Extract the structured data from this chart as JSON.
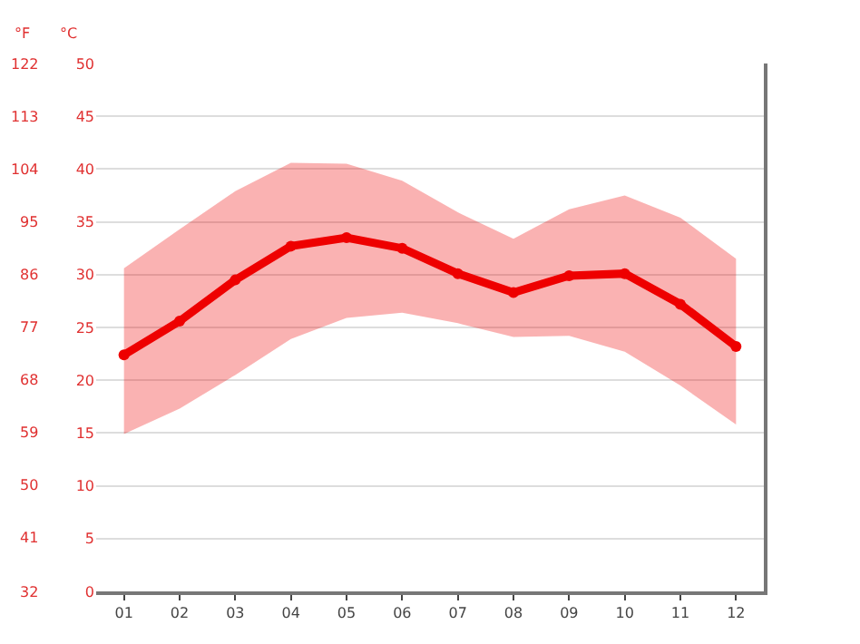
{
  "chart_data": {
    "type": "line",
    "x": [
      1,
      2,
      3,
      4,
      5,
      6,
      7,
      8,
      9,
      10,
      11,
      12
    ],
    "series": [
      {
        "color": "#ee0000",
        "values": [
          22.4,
          25.6,
          29.5,
          32.7,
          33.5,
          32.5,
          30.1,
          28.3,
          29.9,
          30.1,
          27.2,
          23.2
        ],
        "lower": [
          14.9,
          17.3,
          20.5,
          23.9,
          25.9,
          26.4,
          25.4,
          24.1,
          24.2,
          22.7,
          19.5,
          15.8
        ],
        "upper": [
          30.6,
          34.3,
          37.9,
          40.6,
          40.5,
          38.9,
          35.9,
          33.4,
          36.2,
          37.5,
          35.4,
          31.5
        ]
      }
    ],
    "xlim": [
      0.5,
      12.5
    ],
    "xticks": [
      {
        "value": 1,
        "label": "01"
      },
      {
        "value": 2,
        "label": "02"
      },
      {
        "value": 3,
        "label": "03"
      },
      {
        "value": 4,
        "label": "04"
      },
      {
        "value": 5,
        "label": "05"
      },
      {
        "value": 6,
        "label": "06"
      },
      {
        "value": 7,
        "label": "07"
      },
      {
        "value": 8,
        "label": "08"
      },
      {
        "value": 9,
        "label": "09"
      },
      {
        "value": 10,
        "label": "10"
      },
      {
        "value": 11,
        "label": "11"
      },
      {
        "value": 12,
        "label": "12"
      }
    ],
    "ylabel": "°C",
    "ylim": [
      0,
      50
    ],
    "yticks": [
      0,
      5,
      10,
      15,
      20,
      25,
      30,
      35,
      40,
      45,
      50
    ],
    "y2label": "°F",
    "y2lim": [
      32,
      122
    ],
    "y2ticks": [
      32,
      41,
      50,
      59,
      68,
      77,
      86,
      95,
      104,
      113,
      122
    ],
    "grid": "y",
    "marker": "circle",
    "line_style": "solid",
    "legend": false
  }
}
